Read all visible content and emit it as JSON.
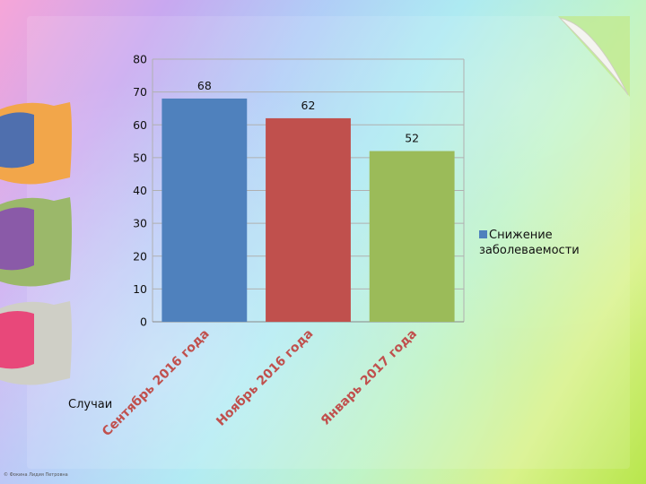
{
  "chart_data": {
    "type": "bar",
    "categories": [
      "Сентябрь 2016 года",
      "Ноябрь 2016 года",
      "Январь 2017 года"
    ],
    "series": [
      {
        "name": "Снижение заболеваемости",
        "values": [
          68,
          62,
          52
        ]
      }
    ],
    "data_labels": [
      "68",
      "62",
      "52"
    ],
    "bar_colors": [
      "#4f81bd",
      "#c0504d",
      "#9bbb59"
    ],
    "category_label_colors": [
      "#c0504d",
      "#c0504d",
      "#c0504d"
    ],
    "xlabel": "Случаи",
    "ylabel": "",
    "ylim": [
      0,
      80
    ],
    "yticks": [
      "0",
      "10",
      "20",
      "30",
      "40",
      "50",
      "60",
      "70",
      "80"
    ],
    "grid": true,
    "legend_position": "right"
  },
  "legend": {
    "label": "Снижение заболеваемости",
    "color": "#4f81bd"
  },
  "footer": "© Фокина Лидия Петровна"
}
